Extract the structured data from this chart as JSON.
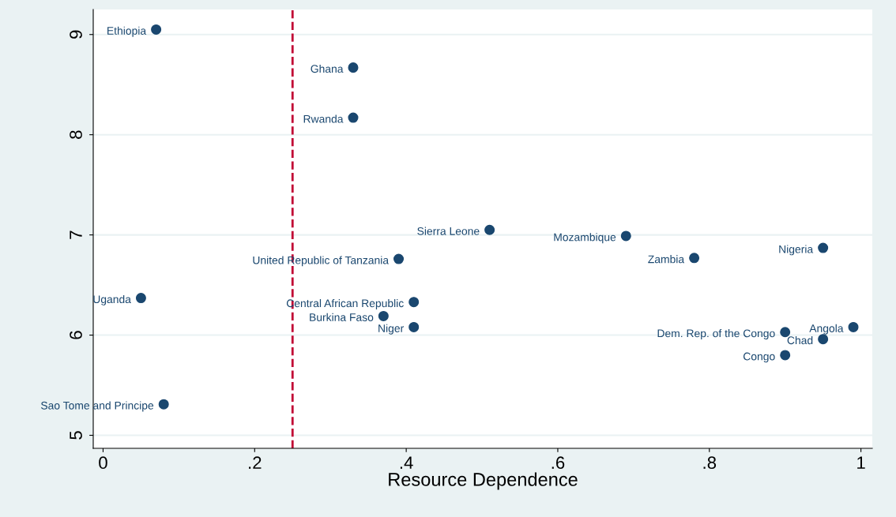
{
  "chart_data": {
    "type": "scatter",
    "xlabel": "Resource Dependence",
    "x": [
      0.07,
      0.33,
      0.33,
      0.51,
      0.69,
      0.95,
      0.78,
      0.39,
      0.05,
      0.41,
      0.37,
      0.41,
      0.9,
      0.99,
      0.95,
      0.9,
      0.08
    ],
    "series": [
      {
        "color": "#1a476f",
        "values": [
          9.05,
          8.67,
          8.17,
          7.05,
          6.99,
          6.87,
          6.77,
          6.76,
          6.37,
          6.33,
          6.19,
          6.08,
          6.03,
          6.08,
          5.96,
          5.8,
          5.31
        ]
      }
    ],
    "annotations": [
      {
        "text": "Ethiopia",
        "x": 0.07,
        "y": 9.05
      },
      {
        "text": "Ghana",
        "x": 0.33,
        "y": 8.67
      },
      {
        "text": "Rwanda",
        "x": 0.33,
        "y": 8.17
      },
      {
        "text": "Sierra Leone",
        "x": 0.51,
        "y": 7.05
      },
      {
        "text": "Mozambique",
        "x": 0.69,
        "y": 6.99
      },
      {
        "text": "Nigeria",
        "x": 0.95,
        "y": 6.87
      },
      {
        "text": "Zambia",
        "x": 0.78,
        "y": 6.77
      },
      {
        "text": "United Republic of Tanzania",
        "x": 0.39,
        "y": 6.76
      },
      {
        "text": "Uganda",
        "x": 0.05,
        "y": 6.37
      },
      {
        "text": "Central African Republic",
        "x": 0.41,
        "y": 6.33
      },
      {
        "text": "Burkina Faso",
        "x": 0.37,
        "y": 6.19
      },
      {
        "text": "Niger",
        "x": 0.41,
        "y": 6.08
      },
      {
        "text": "Dem. Rep. of the Congo",
        "x": 0.9,
        "y": 6.03
      },
      {
        "text": "Angola",
        "x": 0.99,
        "y": 6.08
      },
      {
        "text": "Chad",
        "x": 0.95,
        "y": 5.96
      },
      {
        "text": "Congo",
        "x": 0.9,
        "y": 5.8
      },
      {
        "text": "Sao Tome and Principe",
        "x": 0.08,
        "y": 5.31
      }
    ],
    "xlim": [
      -0.013,
      1.015
    ],
    "ylim": [
      4.87,
      9.25
    ],
    "xticks": [
      {
        "value": 0,
        "label": "0"
      },
      {
        "value": 0.2,
        "label": ".2"
      },
      {
        "value": 0.4,
        "label": ".4"
      },
      {
        "value": 0.6,
        "label": ".6"
      },
      {
        "value": 0.8,
        "label": ".8"
      },
      {
        "value": 1,
        "label": "1"
      }
    ],
    "yticks": [
      5,
      6,
      7,
      8,
      9
    ],
    "ref_lines": [
      {
        "axis": "x",
        "value": 0.25,
        "color": "#c10534",
        "line_style": "dashed"
      }
    ],
    "grid": "y",
    "marker": "circle"
  }
}
